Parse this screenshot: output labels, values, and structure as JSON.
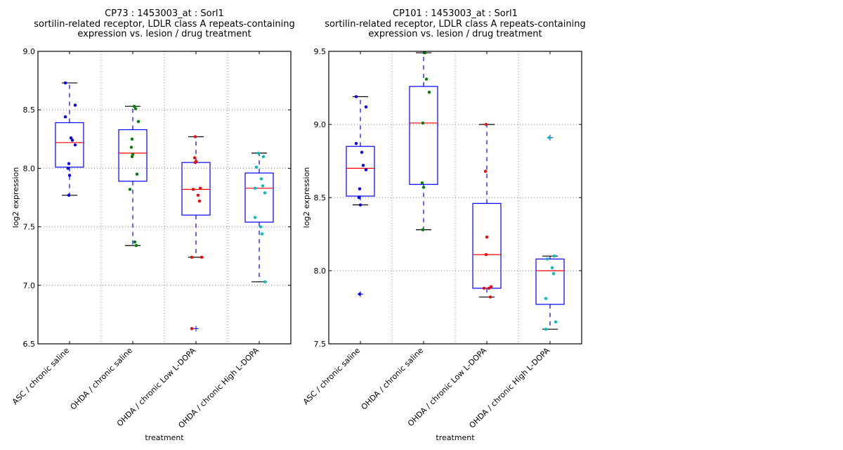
{
  "chart_data": [
    {
      "type": "box",
      "title": [
        "CP73 : 1453003_at : Sorl1",
        "sortilin-related receptor, LDLR class A repeats-containing",
        "expression vs. lesion / drug treatment"
      ],
      "xlabel": "treatment",
      "ylabel": "log2 expression",
      "ylim": [
        6.5,
        9.0
      ],
      "yticks": [
        "6.5",
        "7.0",
        "7.5",
        "8.0",
        "8.5",
        "9.0"
      ],
      "grid": true,
      "categories": [
        "ASC / chronic saline",
        "OHDA / chronic saline",
        "OHDA / chronic Low L-DOPA",
        "OHDA / chronic High L-DOPA"
      ],
      "colors": [
        "#0000ff",
        "#008000",
        "#ff0000",
        "#00bfbf"
      ],
      "boxes": [
        {
          "q1": 8.01,
          "median": 8.22,
          "q3": 8.39,
          "whisker_low": 7.77,
          "whisker_high": 8.73,
          "outliers": [],
          "points": [
            8.73,
            8.54,
            8.44,
            8.26,
            8.24,
            8.2,
            8.04,
            8.0,
            7.94,
            7.77
          ]
        },
        {
          "q1": 7.89,
          "median": 8.13,
          "q3": 8.33,
          "whisker_low": 7.34,
          "whisker_high": 8.53,
          "outliers": [],
          "points": [
            8.53,
            8.51,
            8.4,
            8.25,
            8.18,
            8.12,
            8.1,
            7.95,
            7.82,
            7.37,
            7.34
          ]
        },
        {
          "q1": 7.6,
          "median": 7.82,
          "q3": 8.05,
          "whisker_low": 7.24,
          "whisker_high": 8.27,
          "outliers": [
            6.63
          ],
          "points": [
            8.27,
            8.09,
            8.06,
            8.05,
            7.83,
            7.82,
            7.77,
            7.72,
            7.24,
            7.24,
            6.63
          ]
        },
        {
          "q1": 7.54,
          "median": 7.83,
          "q3": 7.96,
          "whisker_low": 7.03,
          "whisker_high": 8.13,
          "outliers": [],
          "points": [
            8.13,
            8.1,
            8.01,
            7.91,
            7.85,
            7.83,
            7.79,
            7.58,
            7.5,
            7.44,
            7.03
          ]
        }
      ]
    },
    {
      "type": "box",
      "title": [
        "CP101 : 1453003_at : Sorl1",
        "sortilin-related receptor, LDLR class A repeats-containing",
        "expression vs. lesion / drug treatment"
      ],
      "xlabel": "treatment",
      "ylabel": "log2 expression",
      "ylim": [
        7.5,
        9.5
      ],
      "yticks": [
        "7.5",
        "8.0",
        "8.5",
        "9.0",
        "9.5"
      ],
      "grid": true,
      "categories": [
        "ASC / chronic saline",
        "OHDA / chronic saline",
        "OHDA / chronic Low L-DOPA",
        "OHDA / chronic High L-DOPA"
      ],
      "colors": [
        "#0000ff",
        "#008000",
        "#ff0000",
        "#00bfbf"
      ],
      "boxes": [
        {
          "q1": 8.51,
          "median": 8.7,
          "q3": 8.85,
          "whisker_low": 8.45,
          "whisker_high": 9.19,
          "outliers": [
            7.84
          ],
          "points": [
            9.19,
            9.12,
            8.87,
            8.81,
            8.72,
            8.69,
            8.56,
            8.5,
            8.45,
            7.84
          ]
        },
        {
          "q1": 8.59,
          "median": 9.01,
          "q3": 9.26,
          "whisker_low": 8.28,
          "whisker_high": 9.49,
          "outliers": [],
          "points": [
            9.49,
            9.31,
            9.22,
            9.01,
            8.6,
            8.57,
            8.28
          ]
        },
        {
          "q1": 7.88,
          "median": 8.11,
          "q3": 8.46,
          "whisker_low": 7.82,
          "whisker_high": 9.0,
          "outliers": [],
          "points": [
            9.0,
            8.68,
            8.23,
            8.11,
            7.89,
            7.88,
            7.88,
            7.82
          ]
        },
        {
          "q1": 7.77,
          "median": 8.0,
          "q3": 8.08,
          "whisker_low": 7.6,
          "whisker_high": 8.1,
          "outliers": [
            8.91
          ],
          "points": [
            8.91,
            8.1,
            8.08,
            8.02,
            7.98,
            7.81,
            7.65,
            7.6
          ]
        }
      ]
    }
  ]
}
